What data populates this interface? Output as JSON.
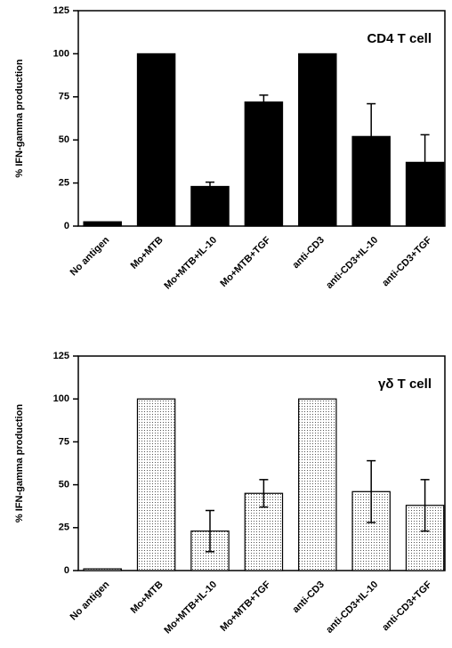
{
  "chart_data": [
    {
      "type": "bar",
      "title": "CD4 T cell",
      "ylabel": "% IFN-gamma production",
      "categories": [
        "No antigen",
        "Mo+MTB",
        "Mo+MTB+IL-10",
        "Mo+MTB+TGF",
        "anti-CD3",
        "anti-CD3+IL-10",
        "anti-CD3+TGF"
      ],
      "values": [
        2.5,
        100,
        23,
        72,
        100,
        52,
        37
      ],
      "errors": [
        null,
        null,
        2.5,
        4,
        null,
        19,
        16
      ],
      "error_bars": "upper",
      "color": "#000000",
      "pattern": "solid",
      "ylim": [
        0,
        125
      ],
      "yticks": [
        0,
        25,
        50,
        75,
        100,
        125
      ]
    },
    {
      "type": "bar",
      "title": "γδ T cell",
      "ylabel": "% IFN-gamma production",
      "categories": [
        "No antigen",
        "Mo+MTB",
        "Mo+MTB+IL-10",
        "Mo+MTB+TGF",
        "anti-CD3",
        "anti-CD3+IL-10",
        "anti-CD3+TGF"
      ],
      "values": [
        1,
        100,
        23,
        45,
        100,
        46,
        38
      ],
      "errors": [
        null,
        null,
        12,
        8,
        null,
        18,
        15
      ],
      "error_bars": "both",
      "color": "#000000",
      "pattern": "dots",
      "ylim": [
        0,
        125
      ],
      "yticks": [
        0,
        25,
        50,
        75,
        100,
        125
      ]
    }
  ]
}
